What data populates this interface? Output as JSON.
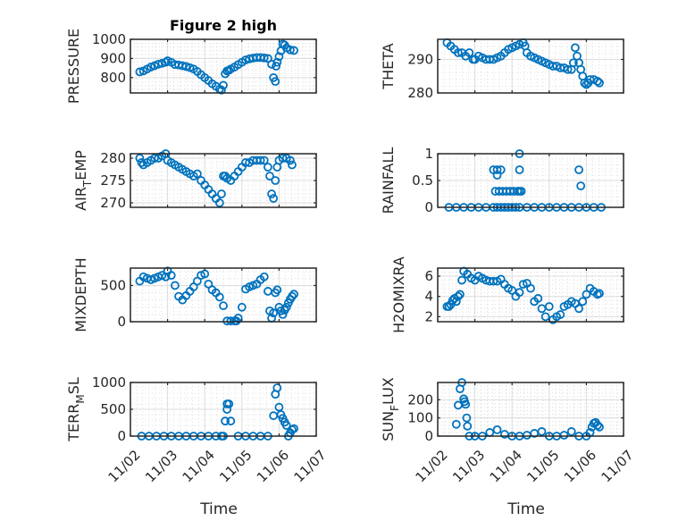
{
  "title": "Figure 2 high",
  "chart_data": [
    {
      "type": "scatter",
      "title": "Figure 2 high",
      "ylabel": "PRESSURE",
      "ylim": [
        720,
        1000
      ],
      "yticks": [
        800,
        900,
        1000
      ],
      "xticks": [
        "11/02",
        "11/03",
        "11/04",
        "11/05",
        "11/06",
        "11/07"
      ],
      "xlim_days": [
        0,
        5
      ],
      "x": [
        0.25,
        0.35,
        0.45,
        0.55,
        0.65,
        0.75,
        0.85,
        0.95,
        1.0,
        1.1,
        1.2,
        1.3,
        1.4,
        1.5,
        1.6,
        1.7,
        1.8,
        1.9,
        2.0,
        2.1,
        2.2,
        2.3,
        2.4,
        2.45,
        2.5,
        2.55,
        2.6,
        2.65,
        2.7,
        2.8,
        2.9,
        3.0,
        3.1,
        3.2,
        3.3,
        3.4,
        3.5,
        3.6,
        3.7,
        3.8,
        3.85,
        3.9,
        3.92,
        3.95,
        4.0,
        4.05,
        4.1,
        4.15,
        4.2,
        4.3,
        4.4
      ],
      "y": [
        830,
        835,
        845,
        855,
        862,
        870,
        875,
        880,
        888,
        880,
        868,
        866,
        862,
        858,
        852,
        845,
        832,
        815,
        800,
        785,
        768,
        755,
        740,
        735,
        760,
        820,
        835,
        838,
        845,
        855,
        868,
        880,
        892,
        898,
        902,
        905,
        905,
        903,
        900,
        870,
        800,
        780,
        860,
        880,
        910,
        940,
        975,
        970,
        955,
        945,
        942
      ]
    },
    {
      "type": "scatter",
      "ylabel": "THETA",
      "ylim": [
        280,
        296
      ],
      "yticks": [
        280,
        290
      ],
      "xticks": [
        "11/02",
        "11/03",
        "11/04",
        "11/05",
        "11/06",
        "11/07"
      ],
      "xlim_days": [
        0,
        5
      ],
      "x": [
        0.25,
        0.35,
        0.45,
        0.55,
        0.65,
        0.75,
        0.85,
        0.95,
        1.0,
        1.1,
        1.2,
        1.3,
        1.4,
        1.5,
        1.6,
        1.7,
        1.8,
        1.9,
        2.0,
        2.1,
        2.2,
        2.3,
        2.35,
        2.4,
        2.5,
        2.6,
        2.7,
        2.8,
        2.9,
        3.0,
        3.1,
        3.2,
        3.3,
        3.4,
        3.5,
        3.6,
        3.65,
        3.7,
        3.75,
        3.8,
        3.85,
        3.9,
        3.95,
        4.0,
        4.05,
        4.1,
        4.2,
        4.3,
        4.35
      ],
      "y": [
        295,
        294,
        293,
        292,
        292,
        291,
        292,
        290,
        290,
        291,
        290.5,
        290,
        290,
        290,
        290.5,
        291,
        292,
        293,
        293.5,
        294,
        294.5,
        295,
        294,
        292,
        291,
        290.5,
        290,
        289.5,
        289,
        288.5,
        288,
        288,
        287.5,
        287.5,
        287,
        287,
        289,
        293.5,
        291,
        289,
        287,
        285,
        283,
        282.5,
        283,
        284,
        284,
        283.5,
        283
      ]
    },
    {
      "type": "scatter",
      "ylabel": "AIR_TEMP",
      "ylim": [
        269,
        281
      ],
      "yticks": [
        270,
        275,
        280
      ],
      "xticks": [
        "11/02",
        "11/03",
        "11/04",
        "11/05",
        "11/06",
        "11/07"
      ],
      "xlim_days": [
        0,
        5
      ],
      "x": [
        0.25,
        0.3,
        0.35,
        0.45,
        0.55,
        0.65,
        0.75,
        0.85,
        0.95,
        1.0,
        1.1,
        1.2,
        1.3,
        1.4,
        1.5,
        1.6,
        1.7,
        1.8,
        1.9,
        2.0,
        2.1,
        2.2,
        2.3,
        2.4,
        2.45,
        2.5,
        2.55,
        2.6,
        2.7,
        2.8,
        2.9,
        3.0,
        3.1,
        3.2,
        3.3,
        3.4,
        3.5,
        3.6,
        3.7,
        3.75,
        3.8,
        3.85,
        3.9,
        3.95,
        4.0,
        4.1,
        4.2,
        4.3,
        4.35
      ],
      "y": [
        280,
        279,
        278.5,
        279,
        279.5,
        280,
        280,
        280.5,
        281,
        279.5,
        279,
        278.5,
        278,
        277.5,
        277,
        276.5,
        276,
        276.5,
        275,
        274,
        273,
        272,
        271,
        270,
        272,
        276,
        276,
        275.5,
        275,
        276,
        277,
        278,
        279,
        279,
        279.5,
        279.5,
        279.5,
        279.5,
        278,
        276,
        272,
        271,
        275,
        278,
        279.5,
        280,
        280,
        279.5,
        278.5
      ]
    },
    {
      "type": "scatter",
      "ylabel": "RAINFALL",
      "ylim": [
        0,
        1
      ],
      "yticks": [
        0,
        0.5,
        1
      ],
      "xticks": [
        "11/02",
        "11/03",
        "11/04",
        "11/05",
        "11/06",
        "11/07"
      ],
      "xlim_days": [
        0,
        5
      ],
      "x": [
        0.3,
        0.5,
        0.7,
        0.9,
        1.1,
        1.3,
        1.5,
        1.6,
        1.7,
        1.8,
        1.9,
        2.0,
        2.1,
        2.2,
        2.4,
        2.6,
        2.8,
        3.0,
        3.2,
        3.4,
        3.6,
        3.8,
        4.0,
        4.2,
        4.4,
        1.5,
        1.6,
        1.7,
        1.6,
        1.55,
        1.65,
        1.75,
        1.85,
        1.95,
        2.05,
        2.15,
        2.2,
        2.25,
        2.2,
        2.2,
        3.8,
        3.85
      ],
      "y": [
        0,
        0,
        0,
        0,
        0,
        0,
        0,
        0,
        0,
        0,
        0,
        0,
        0,
        0,
        0,
        0,
        0,
        0,
        0,
        0,
        0,
        0,
        0,
        0,
        0,
        0.7,
        0.7,
        0.7,
        0.6,
        0.3,
        0.3,
        0.3,
        0.3,
        0.3,
        0.3,
        0.3,
        0.3,
        0.3,
        1.0,
        0.7,
        0.7,
        0.4
      ]
    },
    {
      "type": "scatter",
      "ylabel": "MIXDEPTH",
      "ylim": [
        0,
        740
      ],
      "yticks": [
        0,
        500
      ],
      "xticks": [
        "11/02",
        "11/03",
        "11/04",
        "11/05",
        "11/06",
        "11/07"
      ],
      "xlim_days": [
        0,
        5
      ],
      "x": [
        0.25,
        0.35,
        0.45,
        0.55,
        0.65,
        0.75,
        0.85,
        0.95,
        1.0,
        1.1,
        1.2,
        1.3,
        1.4,
        1.5,
        1.6,
        1.7,
        1.8,
        1.9,
        2.0,
        2.1,
        2.2,
        2.3,
        2.4,
        2.5,
        2.6,
        2.7,
        2.8,
        2.85,
        2.9,
        3.0,
        3.1,
        3.2,
        3.3,
        3.4,
        3.5,
        3.6,
        3.7,
        3.75,
        3.8,
        3.85,
        3.9,
        3.95,
        4.0,
        4.05,
        4.1,
        4.15,
        4.2,
        4.25,
        4.3,
        4.35,
        4.4
      ],
      "y": [
        560,
        620,
        600,
        580,
        600,
        620,
        640,
        620,
        700,
        640,
        500,
        350,
        300,
        360,
        420,
        480,
        560,
        640,
        660,
        520,
        440,
        400,
        340,
        220,
        10,
        10,
        10,
        10,
        50,
        200,
        450,
        480,
        500,
        520,
        580,
        620,
        420,
        150,
        50,
        120,
        400,
        440,
        200,
        150,
        100,
        160,
        200,
        260,
        310,
        350,
        380
      ]
    },
    {
      "type": "scatter",
      "ylabel": "H2OMIXRA",
      "ylim": [
        1.5,
        6.8
      ],
      "yticks": [
        2,
        4,
        6
      ],
      "xticks": [
        "11/02",
        "11/03",
        "11/04",
        "11/05",
        "11/06",
        "11/07"
      ],
      "xlim_days": [
        0,
        5
      ],
      "x": [
        0.25,
        0.3,
        0.35,
        0.4,
        0.45,
        0.5,
        0.55,
        0.6,
        0.65,
        0.7,
        0.8,
        0.9,
        1.0,
        1.1,
        1.2,
        1.3,
        1.4,
        1.5,
        1.6,
        1.7,
        1.8,
        1.9,
        2.0,
        2.1,
        2.2,
        2.3,
        2.4,
        2.5,
        2.6,
        2.7,
        2.8,
        2.9,
        3.0,
        3.1,
        3.2,
        3.3,
        3.4,
        3.5,
        3.6,
        3.7,
        3.8,
        3.9,
        4.0,
        4.1,
        4.2,
        4.3,
        4.35
      ],
      "y": [
        3.0,
        3.0,
        3.2,
        3.6,
        3.8,
        3.5,
        4.0,
        4.2,
        5.6,
        6.5,
        6.2,
        5.8,
        5.6,
        6.0,
        5.8,
        5.6,
        5.5,
        5.5,
        5.5,
        5.7,
        5.2,
        4.8,
        4.6,
        4.0,
        4.4,
        5.2,
        5.3,
        4.8,
        3.5,
        3.8,
        2.8,
        2.0,
        3.0,
        1.7,
        2.0,
        2.2,
        3.0,
        3.2,
        3.5,
        3.3,
        2.8,
        3.5,
        4.2,
        4.8,
        4.5,
        4.2,
        4.3
      ]
    },
    {
      "type": "scatter",
      "ylabel": "TERR_MSL",
      "ylim": [
        0,
        1000
      ],
      "yticks": [
        0,
        500,
        1000
      ],
      "xticks": [
        "11/02",
        "11/03",
        "11/04",
        "11/05",
        "11/06",
        "11/07"
      ],
      "xlim_days": [
        0,
        5
      ],
      "x": [
        0.3,
        0.5,
        0.7,
        0.9,
        1.1,
        1.3,
        1.5,
        1.7,
        1.9,
        2.1,
        2.3,
        2.45,
        2.5,
        2.55,
        2.6,
        2.6,
        2.65,
        2.7,
        2.9,
        3.1,
        3.3,
        3.5,
        3.7,
        3.85,
        3.9,
        3.95,
        4.0,
        4.05,
        4.1,
        4.15,
        4.2,
        4.25,
        4.3,
        4.35,
        4.4
      ],
      "y": [
        0,
        0,
        0,
        0,
        0,
        0,
        0,
        0,
        0,
        0,
        0,
        0,
        0,
        280,
        600,
        500,
        600,
        280,
        0,
        0,
        0,
        0,
        0,
        380,
        780,
        900,
        540,
        400,
        330,
        260,
        200,
        0,
        60,
        120,
        140
      ]
    },
    {
      "type": "scatter",
      "ylabel": "SUN_FLUX",
      "ylim": [
        0,
        295
      ],
      "yticks": [
        0,
        100,
        200
      ],
      "xticks": [
        "11/02",
        "11/03",
        "11/04",
        "11/05",
        "11/06",
        "11/07"
      ],
      "xlim_days": [
        0,
        5
      ],
      "x": [
        0.5,
        0.55,
        0.6,
        0.65,
        0.7,
        0.72,
        0.75,
        0.78,
        0.8,
        0.85,
        1.0,
        1.2,
        1.4,
        1.6,
        1.8,
        2.0,
        2.2,
        2.4,
        2.6,
        2.8,
        3.0,
        3.2,
        3.4,
        3.6,
        3.8,
        4.0,
        4.1,
        4.15,
        4.2,
        4.25,
        4.3,
        4.35
      ],
      "y": [
        65,
        170,
        260,
        295,
        205,
        190,
        175,
        100,
        55,
        0,
        0,
        0,
        20,
        35,
        10,
        0,
        0,
        5,
        15,
        25,
        0,
        0,
        5,
        25,
        0,
        0,
        20,
        50,
        70,
        75,
        60,
        50
      ]
    }
  ],
  "xlabel": "Time",
  "color": "#0072BD"
}
